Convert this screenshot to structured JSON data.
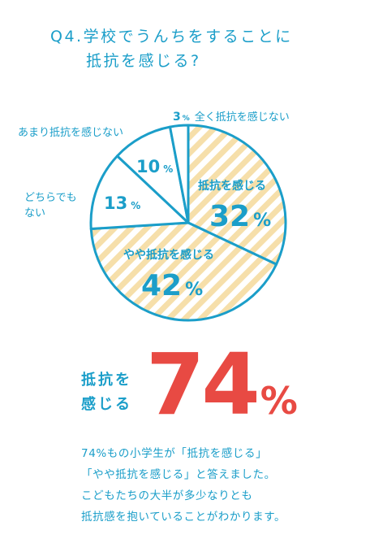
{
  "question": {
    "line1": "Q4.学校でうんちをすることに",
    "line2": "抵抗を感じる?"
  },
  "chart_data": {
    "type": "pie",
    "title": "",
    "categories": [
      "抵抗を感じる",
      "やや抵抗を感じる",
      "どちらでもない",
      "あまり抵抗を感じない",
      "全く抵抗を感じない"
    ],
    "values": [
      32,
      42,
      13,
      10,
      3
    ],
    "value_labels": [
      "32%",
      "42%",
      "13%",
      "10%",
      "3%"
    ],
    "slice_labels": [
      {
        "text": "抵抗を感じる",
        "value": "32",
        "unit": "%"
      },
      {
        "text": "やや抵抗を感じる",
        "value": "42",
        "unit": "%"
      },
      {
        "text": "どちらでも",
        "text2": "ない",
        "value": "13",
        "unit": "%"
      },
      {
        "text": "あまり抵抗を感じない",
        "value": "10",
        "unit": "%"
      },
      {
        "text": "全く抵抗を感じない",
        "value": "3",
        "unit": "%"
      }
    ],
    "colors": {
      "outline": "#1b9ec9",
      "stripe": "#f6dfaa",
      "plain": "#ffffff",
      "text": "#1b9ec9"
    },
    "striped": [
      true,
      true,
      false,
      false,
      false
    ],
    "start": "12 o'clock",
    "direction": "clockwise"
  },
  "highlight": {
    "label_line1": "抵抗を",
    "label_line2": "感じる",
    "value": "74",
    "unit": "%",
    "color": "#e84a43"
  },
  "summary": [
    "74%もの小学生が「抵抗を感じる」",
    "「やや抵抗を感じる」と答えました。",
    "こどもたちの大半が多少なりとも",
    "抵抗感を抱いていることがわかります。"
  ]
}
